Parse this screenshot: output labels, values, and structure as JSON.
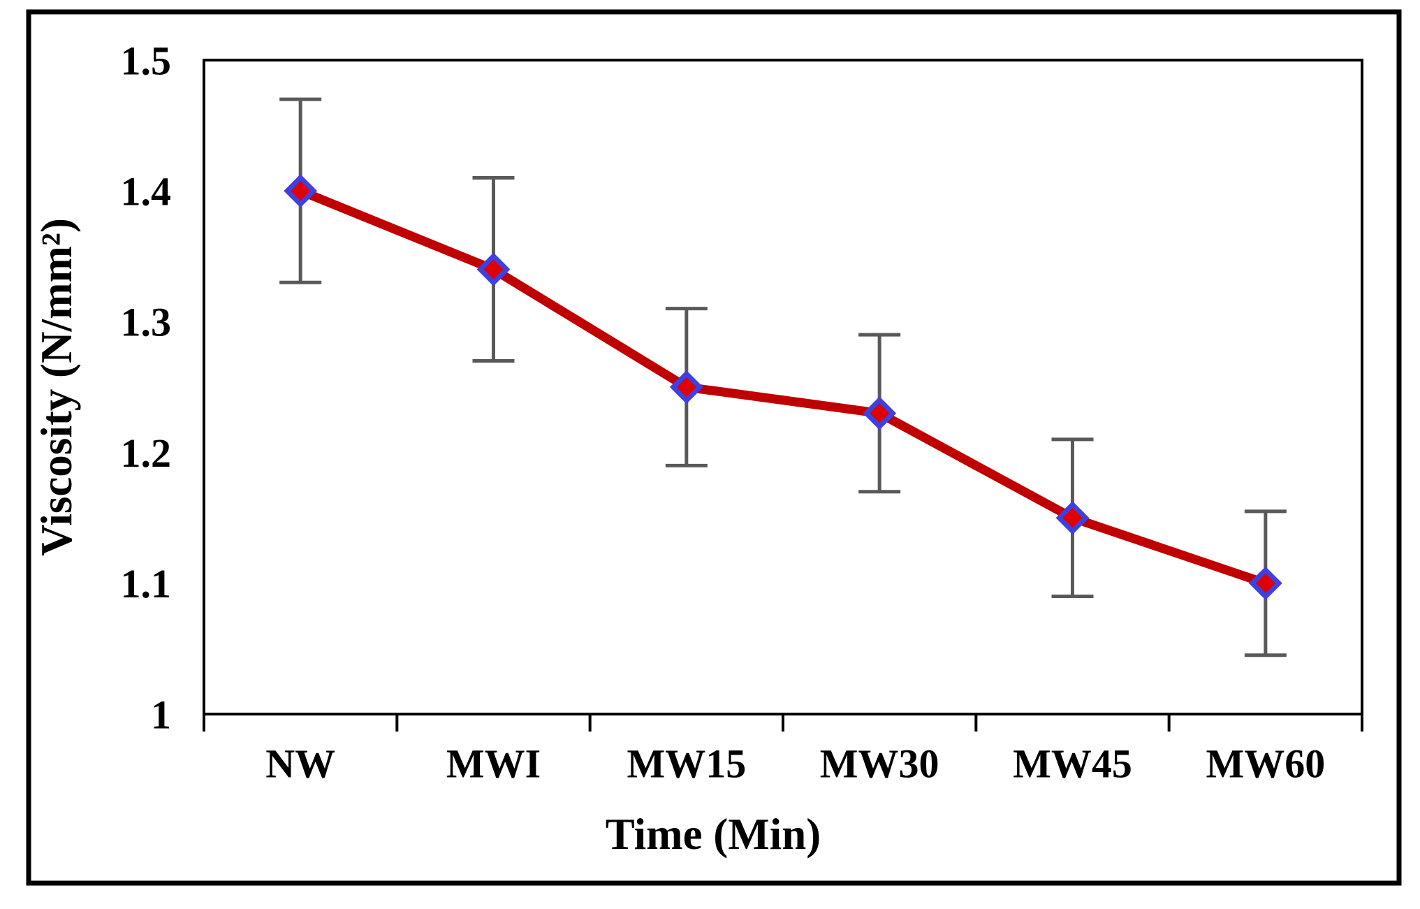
{
  "chart_data": {
    "type": "line",
    "title": "",
    "xlabel": "Time (Min)",
    "ylabel": "Viscosity (N/mm²)",
    "categories": [
      "NW",
      "MWI",
      "MW15",
      "MW30",
      "MW45",
      "MW60"
    ],
    "series": [
      {
        "name": "Viscosity",
        "values": [
          1.4,
          1.34,
          1.25,
          1.23,
          1.15,
          1.1
        ],
        "error_plus": [
          0.07,
          0.07,
          0.06,
          0.06,
          0.06,
          0.055
        ],
        "error_minus": [
          0.07,
          0.07,
          0.06,
          0.06,
          0.06,
          0.055
        ]
      }
    ],
    "ylim": [
      1.0,
      1.5
    ],
    "yticks": {
      "values": [
        1.0,
        1.1,
        1.2,
        1.3,
        1.4,
        1.5
      ],
      "labels": [
        "1",
        "1.1",
        "1.2",
        "1.3",
        "1.4",
        "1.5"
      ]
    },
    "grid": false,
    "legend": "none",
    "marker_shape": "diamond",
    "colors": {
      "line": "#c00000",
      "marker_fill": "#e00000",
      "marker_stroke": "#4040e0",
      "error_bar": "#595959",
      "axis": "#000000",
      "frame": "#000000",
      "background": "#ffffff"
    }
  }
}
